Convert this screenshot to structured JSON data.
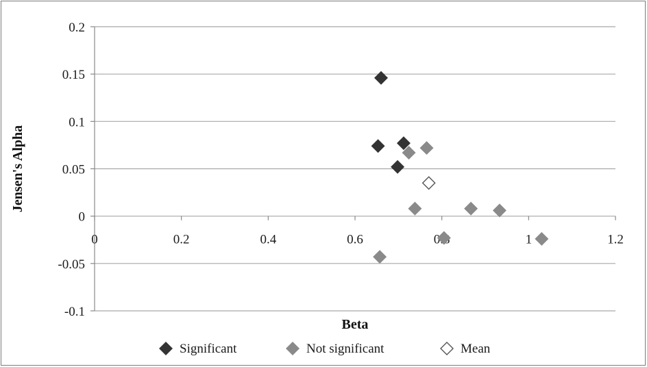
{
  "chart_data": {
    "type": "scatter",
    "xlabel": "Beta",
    "ylabel": "Jensen's Alpha",
    "xlim": [
      0,
      1.2
    ],
    "ylim": [
      -0.1,
      0.2
    ],
    "x_ticks": [
      "0",
      "0.2",
      "0.4",
      "0.6",
      "0.8",
      "1",
      "1.2"
    ],
    "y_ticks": [
      "0.2",
      "0.15",
      "0.1",
      "0.05",
      "0",
      "-0.05",
      "-0.1"
    ],
    "x_tick_values": [
      0,
      0.2,
      0.4,
      0.6,
      0.8,
      1.0,
      1.2
    ],
    "y_tick_values": [
      0.2,
      0.15,
      0.1,
      0.05,
      0,
      -0.05,
      -0.1
    ],
    "grid": "horizontal",
    "legend_position": "bottom",
    "series": [
      {
        "name": "Significant",
        "color": "#333333",
        "marker": "filled-diamond",
        "points": [
          [
            0.66,
            0.146
          ],
          [
            0.653,
            0.074
          ],
          [
            0.712,
            0.077
          ],
          [
            0.698,
            0.052
          ]
        ]
      },
      {
        "name": "Not significant",
        "color": "#8a8a8a",
        "marker": "filled-diamond",
        "points": [
          [
            0.724,
            0.067
          ],
          [
            0.765,
            0.072
          ],
          [
            0.738,
            0.008
          ],
          [
            0.867,
            0.008
          ],
          [
            0.933,
            0.006
          ],
          [
            0.805,
            -0.023
          ],
          [
            1.03,
            -0.024
          ],
          [
            0.657,
            -0.043
          ]
        ]
      },
      {
        "name": "Mean",
        "color": "#555555",
        "marker": "hollow-diamond",
        "points": [
          [
            0.77,
            0.035
          ]
        ]
      }
    ]
  }
}
